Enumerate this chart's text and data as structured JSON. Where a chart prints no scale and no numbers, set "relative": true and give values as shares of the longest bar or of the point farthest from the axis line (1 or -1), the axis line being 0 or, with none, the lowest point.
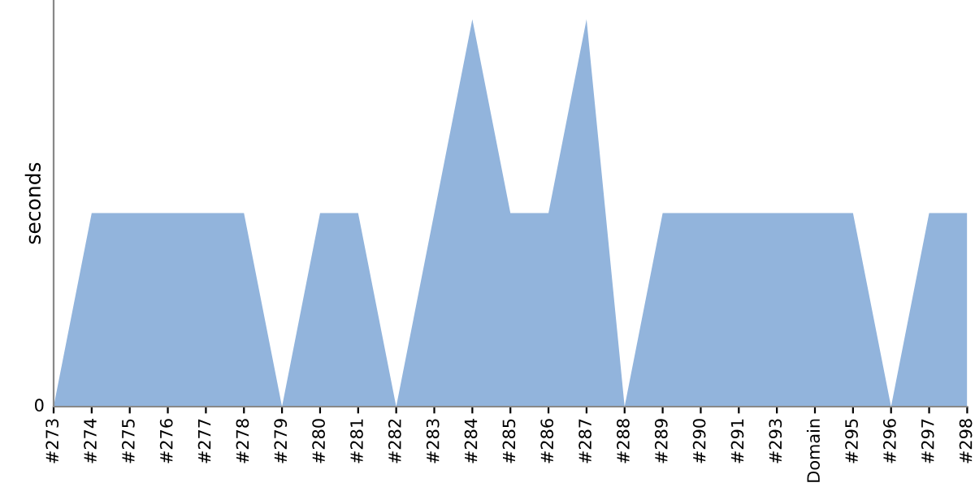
{
  "chart_data": {
    "type": "area",
    "ylabel": "seconds",
    "relative": true,
    "annotations": [
      "0"
    ],
    "categories": [
      "#273",
      "#274",
      "#275",
      "#276",
      "#277",
      "#278",
      "#279",
      "#280",
      "#281",
      "#282",
      "#283",
      "#284",
      "#285",
      "#286",
      "#287",
      "#288",
      "#289",
      "#290",
      "#291",
      "#293",
      "Domain",
      "#295",
      "#296",
      "#297",
      "#298"
    ],
    "series": [
      {
        "color": "#92b4dc",
        "values": [
          0,
          0.5,
          0.5,
          0.5,
          0.5,
          0.5,
          0,
          0.5,
          0.5,
          0,
          0.5,
          1,
          0.5,
          0.5,
          1,
          0,
          0.5,
          0.5,
          0.5,
          0.5,
          0.5,
          0.5,
          0,
          0.5,
          0.5
        ]
      }
    ],
    "grid": false,
    "legend": false
  }
}
